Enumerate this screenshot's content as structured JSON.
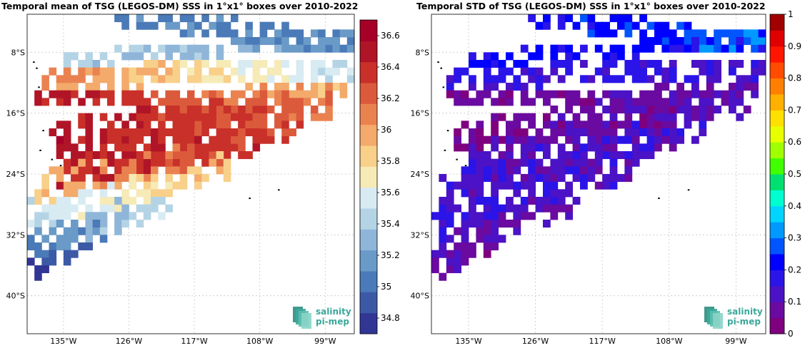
{
  "chart_data": [
    {
      "type": "heatmap",
      "title": "Temporal mean of TSG (LEGOS-DM) SSS in 1°x1° boxes over 2010-2022",
      "x_ticks": [
        {
          "value": -135,
          "label": "135°W"
        },
        {
          "value": -126,
          "label": "126°W"
        },
        {
          "value": -117,
          "label": "117°W"
        },
        {
          "value": -108,
          "label": "108°W"
        },
        {
          "value": -99,
          "label": "99°W"
        }
      ],
      "y_ticks": [
        {
          "value": -8,
          "label": "8°S"
        },
        {
          "value": -16,
          "label": "16°S"
        },
        {
          "value": -24,
          "label": "24°S"
        },
        {
          "value": -32,
          "label": "32°S"
        },
        {
          "value": -40,
          "label": "40°S"
        }
      ],
      "xlim": [
        -140,
        -95
      ],
      "ylim": [
        -45,
        -3
      ],
      "grid": true,
      "colorbar": {
        "min": 34.7,
        "max": 36.7,
        "ticks": [
          "36.6",
          "36.4",
          "36.2",
          "36",
          "35.8",
          "35.6",
          "35.4",
          "35.2",
          "35",
          "34.8"
        ],
        "colors": [
          "#313695",
          "#3c59a6",
          "#4a7ab7",
          "#6a9ac7",
          "#8fb6d8",
          "#b4d4e6",
          "#d8ebf2",
          "#f6eab7",
          "#f8d08a",
          "#f3aa6a",
          "#ea8250",
          "#dc5a3c",
          "#c83029",
          "#b01427",
          "#a50026"
        ]
      },
      "bands": [
        {
          "x0": -127,
          "y0": -3,
          "x1": -95,
          "y1": -7,
          "thickness": 2.2,
          "start": 35.05,
          "end": 35.1
        },
        {
          "x0": -135,
          "y0": -8.5,
          "x1": -95,
          "y1": -6,
          "thickness": 2.0,
          "start": 35.4,
          "end": 35.2
        },
        {
          "x0": -137,
          "y0": -11,
          "x1": -95,
          "y1": -10,
          "thickness": 2.6,
          "start": 36.1,
          "end": 35.45
        },
        {
          "x0": -138,
          "y0": -14,
          "x1": -96,
          "y1": -12.5,
          "thickness": 2.0,
          "start": 36.5,
          "end": 35.9
        },
        {
          "x0": -136,
          "y0": -18.5,
          "x1": -98,
          "y1": -14,
          "thickness": 3.8,
          "start": 36.5,
          "end": 36.15
        },
        {
          "x0": -135,
          "y0": -22.5,
          "x1": -103,
          "y1": -16,
          "thickness": 5.5,
          "start": 36.45,
          "end": 36.3
        },
        {
          "x0": -138,
          "y0": -25.5,
          "x1": -108,
          "y1": -19,
          "thickness": 3.5,
          "start": 35.9,
          "end": 36.4
        },
        {
          "x0": -139,
          "y0": -29,
          "x1": -113,
          "y1": -22.5,
          "thickness": 4.0,
          "start": 35.5,
          "end": 35.9
        },
        {
          "x0": -139,
          "y0": -33,
          "x1": -121,
          "y1": -27,
          "thickness": 4.0,
          "start": 35.05,
          "end": 35.5
        },
        {
          "x0": -139,
          "y0": -36,
          "x1": -130,
          "y1": -31,
          "thickness": 3.0,
          "start": 34.8,
          "end": 35.0
        }
      ]
    },
    {
      "type": "heatmap",
      "title": "Temporal STD of TSG (LEGOS-DM) SSS in 1°x1° boxes over 2010-2022",
      "x_ticks": [
        {
          "value": -135,
          "label": "135°W"
        },
        {
          "value": -126,
          "label": "126°W"
        },
        {
          "value": -117,
          "label": "117°W"
        },
        {
          "value": -108,
          "label": "108°W"
        },
        {
          "value": -99,
          "label": "99°W"
        }
      ],
      "y_ticks": [
        {
          "value": -8,
          "label": "8°S"
        },
        {
          "value": -16,
          "label": "16°S"
        },
        {
          "value": -24,
          "label": "24°S"
        },
        {
          "value": -32,
          "label": "32°S"
        },
        {
          "value": -40,
          "label": "40°S"
        }
      ],
      "xlim": [
        -140,
        -95
      ],
      "ylim": [
        -45,
        -3
      ],
      "grid": true,
      "colorbar": {
        "min": 0,
        "max": 1,
        "ticks": [
          "1",
          "0.9",
          "0.8",
          "0.7",
          "0.6",
          "0.5",
          "0.4",
          "0.3",
          "0.2",
          "0.1",
          "0"
        ],
        "colors": [
          "#7f007f",
          "#6a0aa0",
          "#4b12c6",
          "#2a14e8",
          "#0000ff",
          "#0055ff",
          "#0099ff",
          "#00d4ff",
          "#00ffd0",
          "#00e070",
          "#40ff00",
          "#a0ff00",
          "#e8ff00",
          "#ffe000",
          "#ffb000",
          "#ff8000",
          "#ff4c00",
          "#ff1500",
          "#e00000",
          "#a00000"
        ]
      },
      "bands": [
        {
          "x0": -127,
          "y0": -3,
          "x1": -95,
          "y1": -7,
          "thickness": 2.2,
          "start": 0.2,
          "end": 0.3
        },
        {
          "x0": -135,
          "y0": -8.5,
          "x1": -95,
          "y1": -6,
          "thickness": 2.0,
          "start": 0.22,
          "end": 0.2
        },
        {
          "x0": -137,
          "y0": -11,
          "x1": -95,
          "y1": -10,
          "thickness": 2.6,
          "start": 0.17,
          "end": 0.14
        },
        {
          "x0": -138,
          "y0": -14,
          "x1": -96,
          "y1": -12.5,
          "thickness": 2.0,
          "start": 0.06,
          "end": 0.1
        },
        {
          "x0": -136,
          "y0": -18.5,
          "x1": -98,
          "y1": -14,
          "thickness": 3.8,
          "start": 0.05,
          "end": 0.1
        },
        {
          "x0": -135,
          "y0": -22.5,
          "x1": -103,
          "y1": -16,
          "thickness": 5.5,
          "start": 0.12,
          "end": 0.13
        },
        {
          "x0": -138,
          "y0": -25.5,
          "x1": -108,
          "y1": -19,
          "thickness": 3.5,
          "start": 0.14,
          "end": 0.12
        },
        {
          "x0": -139,
          "y0": -29,
          "x1": -113,
          "y1": -22.5,
          "thickness": 4.0,
          "start": 0.15,
          "end": 0.12
        },
        {
          "x0": -139,
          "y0": -33,
          "x1": -121,
          "y1": -27,
          "thickness": 4.0,
          "start": 0.12,
          "end": 0.1
        },
        {
          "x0": -139,
          "y0": -36,
          "x1": -130,
          "y1": -31,
          "thickness": 3.0,
          "start": 0.08,
          "end": 0.06
        }
      ]
    }
  ],
  "logo": {
    "line1": "salinity",
    "line2": "pi-mep"
  },
  "colors": {
    "logo_text": "#3aa89a",
    "grid": "#c8c8c8",
    "land": "#000000"
  }
}
